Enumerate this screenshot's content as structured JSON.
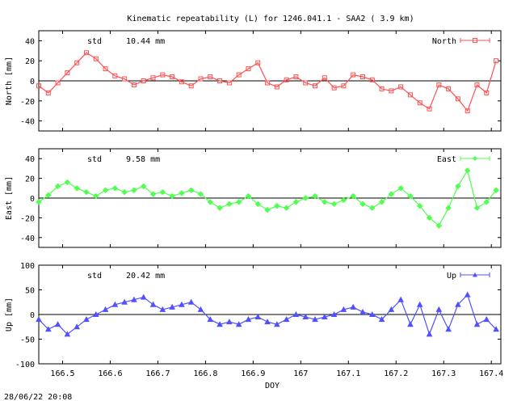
{
  "chart_data": [
    {
      "type": "line",
      "title": "Kinematic repeatability (L) for 1246.041.1 - SAA2  (  3.9 km)",
      "ylabel": "North [mm]",
      "xlabel": "",
      "stats_label": "std",
      "stats_value": "10.44 mm",
      "legend_label": "North",
      "legend_position": "top-right",
      "color": "#ff5050",
      "marker": "square",
      "ylim": [
        -50,
        50
      ],
      "yticks": [
        -40,
        -20,
        0,
        20,
        40
      ],
      "xlim": [
        166.45,
        167.42
      ],
      "zero_line": true,
      "x": [
        166.45,
        166.47,
        166.49,
        166.51,
        166.53,
        166.55,
        166.57,
        166.59,
        166.61,
        166.63,
        166.65,
        166.67,
        166.69,
        166.71,
        166.73,
        166.75,
        166.77,
        166.79,
        166.81,
        166.83,
        166.85,
        166.87,
        166.89,
        166.91,
        166.93,
        166.95,
        166.97,
        166.99,
        167.01,
        167.03,
        167.05,
        167.07,
        167.09,
        167.11,
        167.13,
        167.15,
        167.17,
        167.19,
        167.21,
        167.23,
        167.25,
        167.27,
        167.29,
        167.31,
        167.33,
        167.35,
        167.37,
        167.39,
        167.41
      ],
      "y": [
        -5,
        -12,
        -2,
        8,
        18,
        28,
        22,
        12,
        5,
        2,
        -4,
        0,
        3,
        6,
        4,
        -1,
        -5,
        2,
        4,
        0,
        -2,
        6,
        12,
        18,
        -2,
        -6,
        1,
        4,
        -2,
        -5,
        3,
        -7,
        -5,
        6,
        4,
        1,
        -8,
        -10,
        -6,
        -14,
        -22,
        -28,
        -4,
        -8,
        -18,
        -30,
        -4,
        -12,
        20
      ]
    },
    {
      "type": "line",
      "title": "",
      "ylabel": "East [mm]",
      "xlabel": "",
      "stats_label": "std",
      "stats_value": "9.58 mm",
      "legend_label": "East",
      "legend_position": "top-right",
      "color": "#50ff50",
      "marker": "diamond",
      "ylim": [
        -50,
        50
      ],
      "yticks": [
        -40,
        -20,
        0,
        20,
        40
      ],
      "xlim": [
        166.45,
        167.42
      ],
      "zero_line": true,
      "x": [
        166.45,
        166.47,
        166.49,
        166.51,
        166.53,
        166.55,
        166.57,
        166.59,
        166.61,
        166.63,
        166.65,
        166.67,
        166.69,
        166.71,
        166.73,
        166.75,
        166.77,
        166.79,
        166.81,
        166.83,
        166.85,
        166.87,
        166.89,
        166.91,
        166.93,
        166.95,
        166.97,
        166.99,
        167.01,
        167.03,
        167.05,
        167.07,
        167.09,
        167.11,
        167.13,
        167.15,
        167.17,
        167.19,
        167.21,
        167.23,
        167.25,
        167.27,
        167.29,
        167.31,
        167.33,
        167.35,
        167.37,
        167.39,
        167.41
      ],
      "y": [
        -4,
        3,
        12,
        16,
        10,
        6,
        2,
        8,
        10,
        6,
        8,
        12,
        4,
        6,
        2,
        5,
        8,
        4,
        -4,
        -10,
        -6,
        -4,
        2,
        -6,
        -12,
        -8,
        -10,
        -4,
        0,
        2,
        -4,
        -6,
        -2,
        2,
        -6,
        -10,
        -4,
        4,
        10,
        2,
        -8,
        -20,
        -28,
        -10,
        12,
        28,
        -10,
        -4,
        8
      ]
    },
    {
      "type": "line",
      "title": "",
      "ylabel": "Up [mm]",
      "xlabel": "DOY",
      "stats_label": "std",
      "stats_value": "20.42 mm",
      "legend_label": "Up",
      "legend_position": "top-right",
      "color": "#5050ff",
      "marker": "triangle",
      "ylim": [
        -100,
        100
      ],
      "yticks": [
        -100,
        -50,
        0,
        50,
        100
      ],
      "xlim": [
        166.45,
        167.42
      ],
      "xticks": [
        166.5,
        166.6,
        166.7,
        166.8,
        166.9,
        167,
        167.1,
        167.2,
        167.3,
        167.4
      ],
      "xticklabels": [
        "166.5",
        "166.6",
        "166.7",
        "166.8",
        "166.9",
        "167",
        "167.1",
        "167.2",
        "167.3",
        "167.4"
      ],
      "zero_line": true,
      "x": [
        166.45,
        166.47,
        166.49,
        166.51,
        166.53,
        166.55,
        166.57,
        166.59,
        166.61,
        166.63,
        166.65,
        166.67,
        166.69,
        166.71,
        166.73,
        166.75,
        166.77,
        166.79,
        166.81,
        166.83,
        166.85,
        166.87,
        166.89,
        166.91,
        166.93,
        166.95,
        166.97,
        166.99,
        167.01,
        167.03,
        167.05,
        167.07,
        167.09,
        167.11,
        167.13,
        167.15,
        167.17,
        167.19,
        167.21,
        167.23,
        167.25,
        167.27,
        167.29,
        167.31,
        167.33,
        167.35,
        167.37,
        167.39,
        167.41
      ],
      "y": [
        -10,
        -30,
        -20,
        -40,
        -25,
        -10,
        0,
        10,
        20,
        25,
        30,
        35,
        20,
        10,
        15,
        20,
        25,
        10,
        -10,
        -20,
        -15,
        -20,
        -10,
        -5,
        -15,
        -20,
        -10,
        0,
        -5,
        -10,
        -5,
        0,
        10,
        15,
        5,
        0,
        -10,
        10,
        30,
        -20,
        20,
        -40,
        10,
        -30,
        20,
        40,
        -20,
        -10,
        -30
      ]
    }
  ],
  "footer": {
    "timestamp": "28/06/22 20:08"
  }
}
